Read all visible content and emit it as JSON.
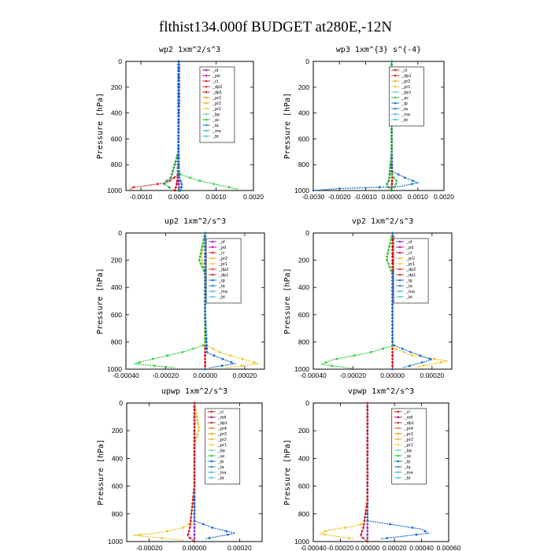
{
  "figure": {
    "title": "flthist134.000f  BUDGET at280E,-12N"
  },
  "chart_data": [
    {
      "type": "line",
      "title": "wp2   1xm^2/s^3",
      "ylabel": "Pressure [hPa]",
      "xlim": [
        -0.0014,
        0.002
      ],
      "ylim": [
        1000,
        0
      ],
      "xticks": [
        -0.001,
        0.0,
        0.001,
        0.002
      ],
      "xtick_labels": [
        "-0.0010",
        "0.0000",
        "0.0010",
        "0.0020"
      ],
      "yticks": [
        0,
        200,
        400,
        600,
        800,
        1000
      ],
      "legend": [
        "_sf",
        "_pd",
        "_cl",
        "_dp2",
        "_dp1",
        "_pr3",
        "_pr2",
        "_pr1",
        "_bp",
        "_ac",
        "_ta",
        "_ma",
        "_bt"
      ],
      "series": [
        {
          "name": "_sf",
          "color": "#8e2fc9",
          "points": [
            [
              2e-05,
              0
            ],
            [
              2e-05,
              300
            ],
            [
              0.0,
              600
            ],
            [
              0.0,
              900
            ],
            [
              1e-05,
              960
            ],
            [
              3e-05,
              1000
            ]
          ]
        },
        {
          "name": "_pd",
          "color": "#e00000",
          "points": [
            [
              0.0,
              0
            ],
            [
              0.0,
              300
            ],
            [
              0.0,
              600
            ],
            [
              -2e-05,
              900
            ],
            [
              -5e-05,
              960
            ],
            [
              -0.0001,
              1000
            ]
          ]
        },
        {
          "name": "_dp1",
          "color": "#d42020",
          "points": [
            [
              0.0,
              0
            ],
            [
              0.0,
              300
            ],
            [
              0.0,
              600
            ],
            [
              -2e-05,
              880
            ],
            [
              -0.0003,
              940
            ],
            [
              -0.0012,
              975
            ],
            [
              -0.0013,
              995
            ]
          ]
        },
        {
          "name": "_pr1",
          "color": "#2ecc40",
          "points": [
            [
              0.0,
              0
            ],
            [
              0.0,
              300
            ],
            [
              0.0,
              600
            ],
            [
              0.0,
              870
            ],
            [
              0.0005,
              920
            ],
            [
              0.0011,
              960
            ],
            [
              0.0016,
              990
            ]
          ]
        },
        {
          "name": "_ac",
          "color": "#1f9e40",
          "points": [
            [
              0.0,
              0
            ],
            [
              0.0,
              300
            ],
            [
              0.0,
              700
            ],
            [
              -0.0002,
              900
            ],
            [
              -0.0004,
              945
            ],
            [
              -0.0002,
              985
            ]
          ]
        },
        {
          "name": "_ta",
          "color": "#1a6ad4",
          "points": [
            [
              0.0,
              0
            ],
            [
              0.0,
              600
            ],
            [
              2e-05,
              900
            ],
            [
              0.0001,
              960
            ],
            [
              5e-05,
              1000
            ]
          ]
        }
      ]
    },
    {
      "type": "line",
      "title": "wp3   1xm^{3} s^{-4}",
      "ylabel": "Pressure [hPa]",
      "xlim": [
        -0.003,
        0.002
      ],
      "ylim": [
        1000,
        0
      ],
      "xticks": [
        -0.003,
        -0.002,
        -0.001,
        0.0,
        0.001,
        0.002
      ],
      "xtick_labels": [
        "-0.0030",
        "-0.0020",
        "-0.0010",
        "0.0000",
        "0.0010",
        "0.0020"
      ],
      "yticks": [
        0,
        200,
        400,
        600,
        800,
        1000
      ],
      "legend": [
        "_cl",
        "_dp1",
        "_pr2",
        "_pr1",
        "_bp1",
        "_ac",
        "_tp",
        "_ta",
        "_ma",
        "_bt"
      ],
      "series": [
        {
          "name": "_cl",
          "color": "#e00000",
          "points": [
            [
              0.0,
              0
            ],
            [
              0.0,
              300
            ],
            [
              0.0,
              600
            ],
            [
              2e-05,
              900
            ],
            [
              0.0,
              1000
            ]
          ]
        },
        {
          "name": "_pr1",
          "color": "#2ecc40",
          "points": [
            [
              0.0,
              0
            ],
            [
              0.0,
              600
            ],
            [
              0.0,
              880
            ],
            [
              0.0002,
              930
            ],
            [
              0.0001,
              980
            ]
          ]
        },
        {
          "name": "_tp",
          "color": "#1a6ad4",
          "points": [
            [
              0.0,
              0
            ],
            [
              0.0,
              600
            ],
            [
              0.0,
              850
            ],
            [
              0.0005,
              900
            ],
            [
              0.001,
              940
            ],
            [
              0.0003,
              970
            ],
            [
              -0.002,
              985
            ],
            [
              -0.003,
              1000
            ]
          ]
        },
        {
          "name": "_ac",
          "color": "#1f9e40",
          "points": [
            [
              0.0,
              0
            ],
            [
              0.0,
              700
            ],
            [
              -0.0001,
              920
            ],
            [
              -0.0002,
              960
            ],
            [
              0.0,
              1000
            ]
          ]
        }
      ]
    },
    {
      "type": "line",
      "title": "up2   1xm^2/s^3",
      "ylabel": "Pressure [hPa]",
      "xlim": [
        -0.0004,
        0.0003
      ],
      "ylim": [
        1000,
        0
      ],
      "xticks": [
        -0.0004,
        -0.0002,
        0.0,
        0.0002
      ],
      "xtick_labels": [
        "-0.00040",
        "-0.00020",
        "0.00000",
        "0.00020"
      ],
      "yticks": [
        0,
        200,
        400,
        600,
        800,
        1000
      ],
      "legend": [
        "_sf",
        "_pd",
        "_cl",
        "_pr2",
        "_pr1",
        "_dp2",
        "_dp1",
        "_tp",
        "_ta",
        "_ma",
        "_bt"
      ],
      "series": [
        {
          "name": "_cl",
          "color": "#e00000",
          "points": [
            [
              0.0,
              0
            ],
            [
              0.0,
              300
            ],
            [
              0.0,
              600
            ],
            [
              0.0,
              900
            ],
            [
              0.0,
              1000
            ]
          ]
        },
        {
          "name": "_pr1",
          "color": "#f0c020",
          "points": [
            [
              0.0,
              0
            ],
            [
              -2e-05,
              180
            ],
            [
              0.0,
              300
            ],
            [
              0.0,
              820
            ],
            [
              8e-05,
              880
            ],
            [
              0.0002,
              930
            ],
            [
              0.00027,
              960
            ],
            [
              0.0001,
              990
            ]
          ]
        },
        {
          "name": "_dp1",
          "color": "#2ecc40",
          "points": [
            [
              0.0,
              0
            ],
            [
              -3e-05,
              200
            ],
            [
              0.0,
              300
            ],
            [
              0.0,
              820
            ],
            [
              -0.0001,
              870
            ],
            [
              -0.00025,
              920
            ],
            [
              -0.00036,
              960
            ],
            [
              -0.00015,
              990
            ]
          ]
        },
        {
          "name": "_tp",
          "color": "#1a6ad4",
          "points": [
            [
              0.0,
              0
            ],
            [
              0.0,
              600
            ],
            [
              1e-05,
              880
            ],
            [
              8e-05,
              920
            ],
            [
              0.00015,
              960
            ],
            [
              2e-05,
              990
            ]
          ]
        }
      ]
    },
    {
      "type": "line",
      "title": "vp2   1xm^2/s^3",
      "ylabel": "Pressure [hPa]",
      "xlim": [
        -0.0004,
        0.0003
      ],
      "ylim": [
        1000,
        0
      ],
      "xticks": [
        -0.0004,
        -0.0002,
        0.0,
        0.0002
      ],
      "xtick_labels": [
        "-0.00040",
        "-0.00020",
        "0.00000",
        "0.00020"
      ],
      "yticks": [
        0,
        200,
        400,
        600,
        800,
        1000
      ],
      "legend": [
        "_sf",
        "_pd",
        "_cl",
        "_pr2",
        "_pr1",
        "_dp2",
        "_dp1",
        "_tp",
        "_ta",
        "_ma",
        "_bt"
      ],
      "series": [
        {
          "name": "_cl",
          "color": "#e00000",
          "points": [
            [
              0.0,
              0
            ],
            [
              0.0,
              300
            ],
            [
              0.0,
              600
            ],
            [
              0.0,
              900
            ],
            [
              0.0,
              1000
            ]
          ]
        },
        {
          "name": "_pr1",
          "color": "#f0c020",
          "points": [
            [
              0.0,
              0
            ],
            [
              -3e-05,
              190
            ],
            [
              0.0,
              300
            ],
            [
              0.0,
              840
            ],
            [
              0.0001,
              900
            ],
            [
              0.00028,
              940
            ],
            [
              0.00012,
              985
            ]
          ]
        },
        {
          "name": "_dp1",
          "color": "#2ecc40",
          "points": [
            [
              0.0,
              0
            ],
            [
              -3e-05,
              190
            ],
            [
              0.0,
              300
            ],
            [
              0.0,
              830
            ],
            [
              -0.00012,
              880
            ],
            [
              -0.0003,
              930
            ],
            [
              -0.00036,
              965
            ],
            [
              -0.0002,
              995
            ]
          ]
        },
        {
          "name": "_tp",
          "color": "#1a6ad4",
          "points": [
            [
              0.0,
              0
            ],
            [
              3e-05,
              180
            ],
            [
              0.0,
              300
            ],
            [
              0.0,
              820
            ],
            [
              0.0001,
              880
            ],
            [
              0.0002,
              930
            ],
            [
              5e-05,
              990
            ]
          ]
        }
      ]
    },
    {
      "type": "line",
      "title": "upwp   1xm^2/s^3",
      "ylabel": "Pressure [hPa]",
      "xlim": [
        -0.0003,
        0.0003
      ],
      "ylim": [
        1000,
        0
      ],
      "xticks": [
        -0.0002,
        0.0,
        0.0002
      ],
      "xtick_labels": [
        "-0.00020",
        "0.00000",
        "0.00020"
      ],
      "yticks": [
        0,
        200,
        400,
        600,
        800,
        1000
      ],
      "legend": [
        "_cl",
        "_mfl",
        "_dp1",
        "_pr4",
        "_pr3",
        "_pr2",
        "_pr1",
        "_bp",
        "_ac",
        "_tp",
        "_ta",
        "_ma",
        "_bt"
      ],
      "series": [
        {
          "name": "_cl",
          "color": "#8e2fc9",
          "points": [
            [
              0.0,
              0
            ],
            [
              0.0,
              300
            ],
            [
              0.0,
              600
            ],
            [
              0.0,
              900
            ],
            [
              0.0,
              1000
            ]
          ]
        },
        {
          "name": "_pr1",
          "color": "#f0c020",
          "points": [
            [
              0.0,
              0
            ],
            [
              2e-05,
              190
            ],
            [
              0.0,
              300
            ],
            [
              0.0,
              850
            ],
            [
              -5e-05,
              900
            ],
            [
              -0.00015,
              935
            ],
            [
              -0.00027,
              955
            ],
            [
              -5e-05,
              990
            ]
          ]
        },
        {
          "name": "_tp",
          "color": "#1a6ad4",
          "points": [
            [
              0.0,
              0
            ],
            [
              0.0,
              600
            ],
            [
              0.0,
              850
            ],
            [
              8e-05,
              900
            ],
            [
              0.00018,
              940
            ],
            [
              5e-05,
              980
            ]
          ]
        },
        {
          "name": "_dp1",
          "color": "#d42020",
          "points": [
            [
              0.0,
              0
            ],
            [
              0.0,
              600
            ],
            [
              -2e-05,
              900
            ],
            [
              -3e-05,
              960
            ],
            [
              0.0,
              1000
            ]
          ]
        }
      ]
    },
    {
      "type": "line",
      "title": "vpwp   1xm^2/s^3",
      "ylabel": "Pressure [hPa]",
      "xlim": [
        -0.0004,
        0.0006
      ],
      "ylim": [
        1000,
        0
      ],
      "xticks": [
        -0.0004,
        -0.0002,
        0.0,
        0.0002,
        0.0004,
        0.0006
      ],
      "xtick_labels": [
        "-0.00040",
        "-0.00020",
        "0.00000",
        "0.00020",
        "0.00040",
        "0.00060"
      ],
      "yticks": [
        0,
        200,
        400,
        600,
        800,
        1000
      ],
      "legend": [
        "_cl",
        "_mfl",
        "_dp1",
        "_pr4",
        "_pr3",
        "_pr2",
        "_pr1",
        "_bp",
        "_ac",
        "_tp",
        "_ta",
        "_ma",
        "_bt"
      ],
      "series": [
        {
          "name": "_cl",
          "color": "#8e2fc9",
          "points": [
            [
              0.0,
              0
            ],
            [
              0.0,
              300
            ],
            [
              0.0,
              600
            ],
            [
              0.0,
              900
            ],
            [
              0.0,
              1000
            ]
          ]
        },
        {
          "name": "_pr1",
          "color": "#f0c020",
          "points": [
            [
              0.0,
              0
            ],
            [
              0.0,
              600
            ],
            [
              0.0,
              860
            ],
            [
              -0.0001,
              890
            ],
            [
              -0.0003,
              920
            ],
            [
              -0.00035,
              945
            ],
            [
              -0.0001,
              980
            ]
          ]
        },
        {
          "name": "_tp",
          "color": "#1a6ad4",
          "points": [
            [
              0.0,
              0
            ],
            [
              0.0,
              600
            ],
            [
              0.0,
              850
            ],
            [
              0.0002,
              880
            ],
            [
              0.0004,
              910
            ],
            [
              0.00045,
              940
            ],
            [
              0.0001,
              980
            ]
          ]
        },
        {
          "name": "_dp1",
          "color": "#d42020",
          "points": [
            [
              0.0,
              0
            ],
            [
              0.0,
              700
            ],
            [
              -3e-05,
              900
            ],
            [
              -5e-05,
              960
            ],
            [
              0.0,
              1000
            ]
          ]
        }
      ]
    }
  ]
}
